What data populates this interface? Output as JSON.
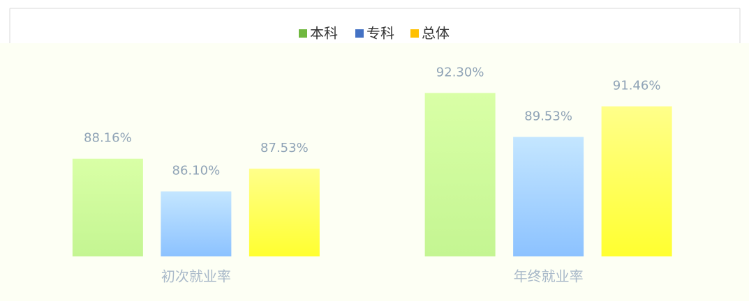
{
  "chart_data": {
    "type": "bar",
    "categories": [
      "初次就业率",
      "年终就业率"
    ],
    "series": [
      {
        "name": "本科",
        "color": "#70b83f",
        "values": [
          88.16,
          92.3
        ],
        "value_labels": [
          "88.16%",
          "92.30%"
        ]
      },
      {
        "name": "专科",
        "color": "#4472c4",
        "values": [
          86.1,
          89.53
        ],
        "value_labels": [
          "86.10%",
          "89.53%"
        ]
      },
      {
        "name": "总体",
        "color": "#ffc000",
        "values": [
          87.53,
          91.46
        ],
        "value_labels": [
          "87.53%",
          "91.46%"
        ]
      }
    ],
    "ylim": [
      82,
      95
    ]
  }
}
